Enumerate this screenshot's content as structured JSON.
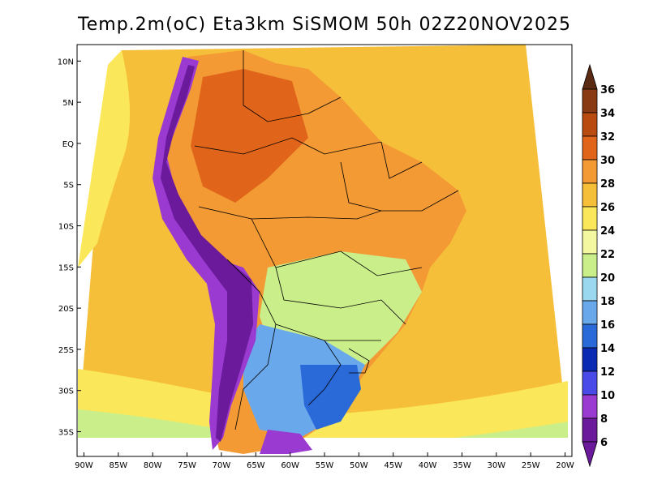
{
  "title": "Temp.2m(oC) Eta3km SiSMOM 50h 02Z20NOV2025",
  "map": {
    "lon_range": [
      -91,
      -19
    ],
    "lat_range": [
      -38,
      12
    ],
    "lon_ticks": [
      "90W",
      "85W",
      "80W",
      "75W",
      "70W",
      "65W",
      "60W",
      "55W",
      "50W",
      "45W",
      "40W",
      "35W",
      "30W",
      "25W",
      "20W"
    ],
    "lat_ticks": [
      "10N",
      "5N",
      "EQ",
      "5S",
      "10S",
      "15S",
      "20S",
      "25S",
      "30S",
      "35S"
    ]
  },
  "colorbar": {
    "labels": [
      "36",
      "34",
      "32",
      "30",
      "28",
      "26",
      "24",
      "22",
      "20",
      "18",
      "16",
      "14",
      "12",
      "10",
      "8",
      "6"
    ],
    "colors": [
      "#5a2a12",
      "#8a3a12",
      "#b94a10",
      "#e0651a",
      "#f39a35",
      "#f6bf3a",
      "#fbe85a",
      "#f3f7a0",
      "#c9ee8a",
      "#9ad8f0",
      "#6aa8ec",
      "#2a6ad8",
      "#0a2ab4",
      "#4a4ae8",
      "#9a3ad0",
      "#6a1a9a"
    ]
  },
  "palette": {
    "ocean": "#f6bf3a",
    "ocean_south": "#fbe85a",
    "ocean_far_south": "#c9ee8a",
    "land_warm": "#f39a35",
    "land_hot": "#e0651a",
    "land_mild": "#c9ee8a",
    "land_cool": "#6aa8ec",
    "land_cold": "#2a6ad8",
    "andes": "#6a1a9a",
    "andes_edge": "#9a3ad0"
  }
}
